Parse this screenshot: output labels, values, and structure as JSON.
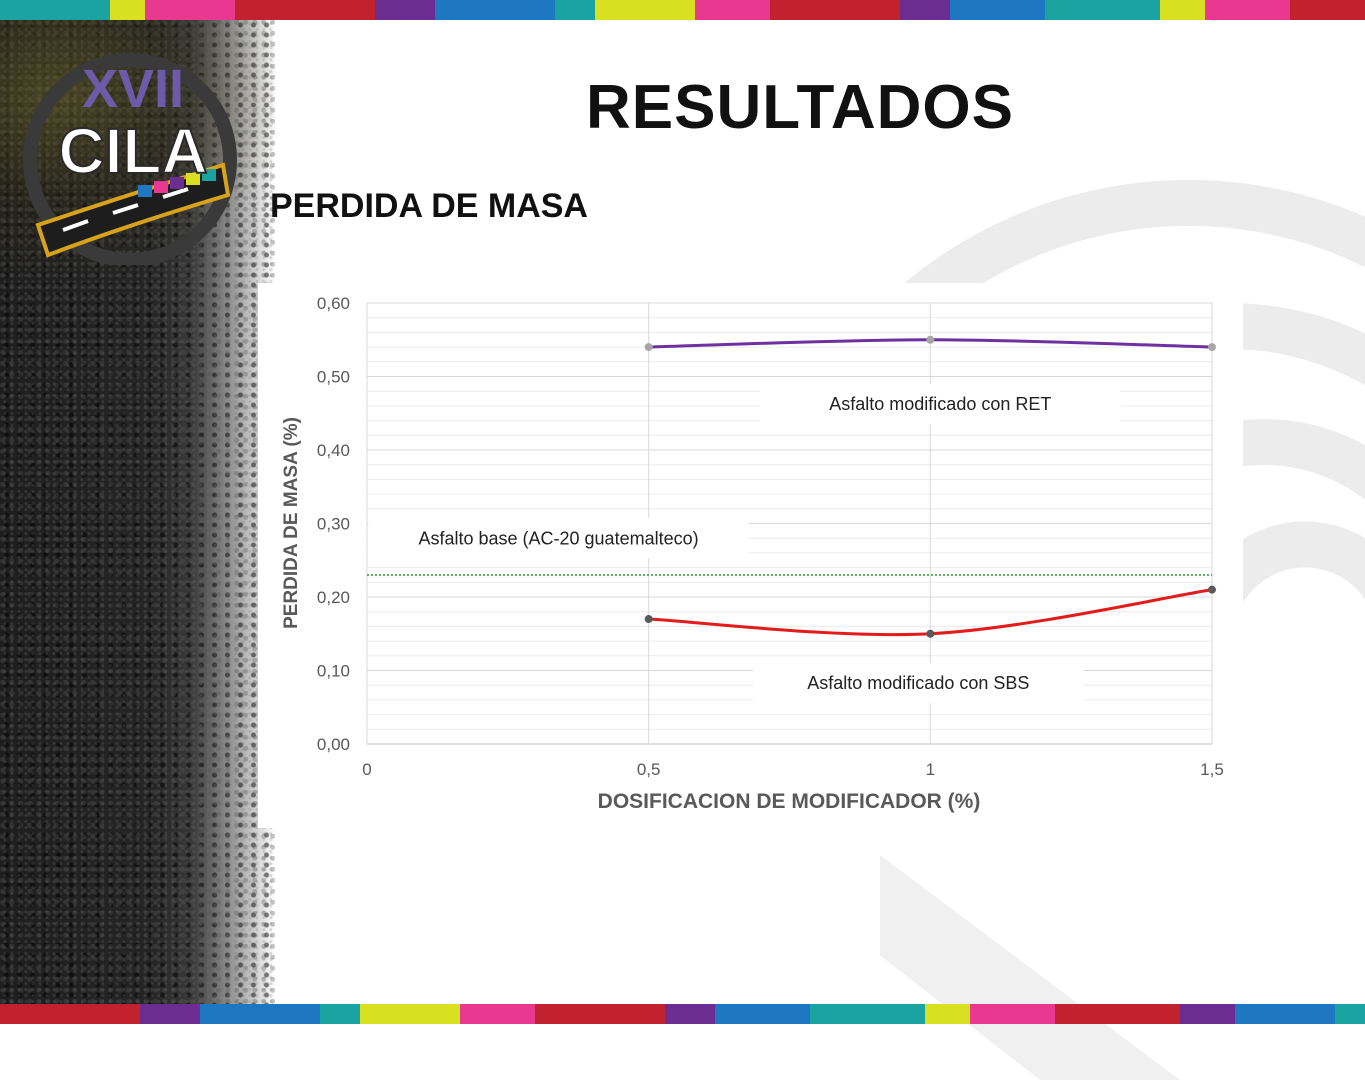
{
  "slide": {
    "title": "RESULTADOS",
    "subtitle": "PERDIDA DE MASA",
    "logo": {
      "numeral": "XVII",
      "name": "CILA"
    }
  },
  "colors": {
    "stripes": [
      "#1aa3a0",
      "#d9e021",
      "#e8388f",
      "#c2212e",
      "#6b2d8f",
      "#1d78c1"
    ],
    "ret_line": "#7030a0",
    "sbs_line": "#e31b1b",
    "base_line": "#2e9b3a"
  },
  "chart_data": {
    "type": "line",
    "xlabel": "DOSIFICACION DE MODIFICADOR (%)",
    "ylabel": "PERDIDA DE MASA (%)",
    "xlim": [
      0,
      1.5
    ],
    "ylim": [
      0,
      0.6
    ],
    "x_ticks": [
      "0",
      "0,5",
      "1",
      "1,5"
    ],
    "y_ticks": [
      "0,00",
      "0,10",
      "0,20",
      "0,30",
      "0,40",
      "0,50",
      "0,60"
    ],
    "grid": true,
    "series": [
      {
        "name": "Asfalto modificado con RET",
        "x": [
          0.5,
          1.0,
          1.5
        ],
        "values": [
          0.54,
          0.55,
          0.54
        ]
      },
      {
        "name": "Asfalto modificado con SBS",
        "x": [
          0.5,
          1.0,
          1.5
        ],
        "values": [
          0.17,
          0.15,
          0.21
        ]
      },
      {
        "name": "Asfalto base (AC-20 guatemalteco)",
        "x": [
          0,
          1.5
        ],
        "values": [
          0.23,
          0.23
        ]
      }
    ]
  }
}
